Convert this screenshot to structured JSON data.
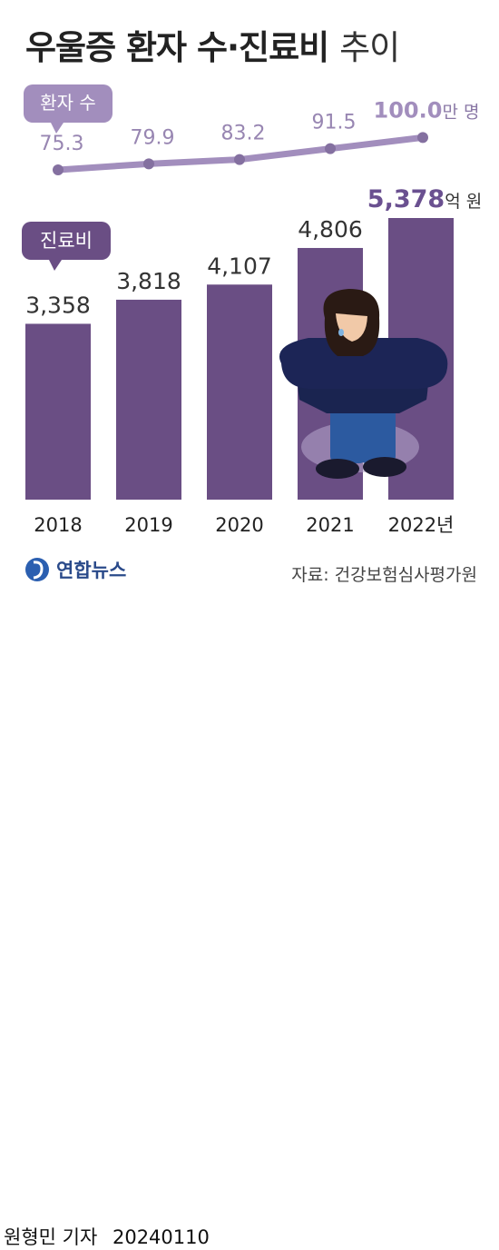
{
  "title": {
    "main": "우울증 환자 수·진료비",
    "sub": "추이"
  },
  "chart_data": [
    {
      "type": "line",
      "series_label": "환자 수",
      "x": [
        "2018",
        "2019",
        "2020",
        "2021",
        "2022"
      ],
      "values": [
        75.3,
        79.9,
        83.2,
        91.5,
        100.0
      ],
      "value_labels": [
        "75.3",
        "79.9",
        "83.2",
        "91.5",
        "100.0"
      ],
      "unit": "만 명",
      "ylim": [
        60,
        110
      ]
    },
    {
      "type": "bar",
      "series_label": "진료비",
      "categories": [
        "2018",
        "2019",
        "2020",
        "2021",
        "2022"
      ],
      "values": [
        3358,
        3818,
        4107,
        4806,
        5378
      ],
      "value_labels": [
        "3,358",
        "3,818",
        "4,107",
        "4,806",
        "5,378"
      ],
      "unit": "억 원",
      "ylim": [
        0,
        5378
      ],
      "x_labels": [
        "2018",
        "2019",
        "2020",
        "2021",
        "2022년"
      ]
    }
  ],
  "colors": {
    "bar": "#6a4e84",
    "line": "#a28ebd",
    "label_last": "#6a5090",
    "label": "#333333"
  },
  "logo": {
    "name": "연합뉴스",
    "icon": "yonhap-logo-icon"
  },
  "source": "자료: 건강보험심사평가원",
  "byline": {
    "reporter": "원형민 기자",
    "date": "20240110"
  }
}
